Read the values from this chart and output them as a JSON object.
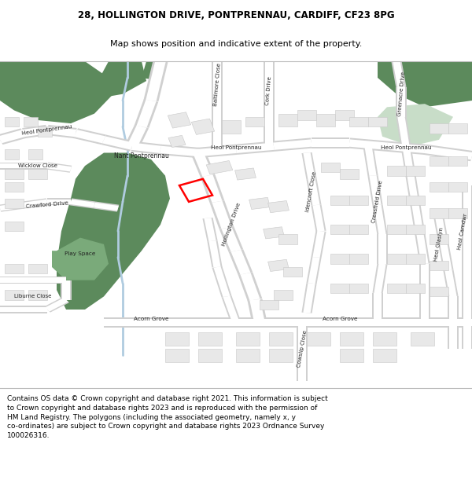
{
  "title_line1": "28, HOLLINGTON DRIVE, PONTPRENNAU, CARDIFF, CF23 8PG",
  "title_line2": "Map shows position and indicative extent of the property.",
  "footer_text": "Contains OS data © Crown copyright and database right 2021. This information is subject to Crown copyright and database rights 2023 and is reproduced with the permission of HM Land Registry. The polygons (including the associated geometry, namely x, y co-ordinates) are subject to Crown copyright and database rights 2023 Ordnance Survey 100026316.",
  "bg_color": "#ffffff",
  "title_fontsize": 8.5,
  "subtitle_fontsize": 8.0,
  "footer_fontsize": 6.5,
  "fig_width": 6.0,
  "fig_height": 6.25,
  "green_dark": "#5c8a5c",
  "green_light": "#c8ddc8",
  "water_color": "#b0cce0",
  "building_color": "#e8e8e8",
  "building_outline": "#c8c8c8",
  "road_fill": "#ffffff",
  "road_outline": "#d0d0d0",
  "plot_color": "#ff0000",
  "map_bg_color": "#f0ede6"
}
